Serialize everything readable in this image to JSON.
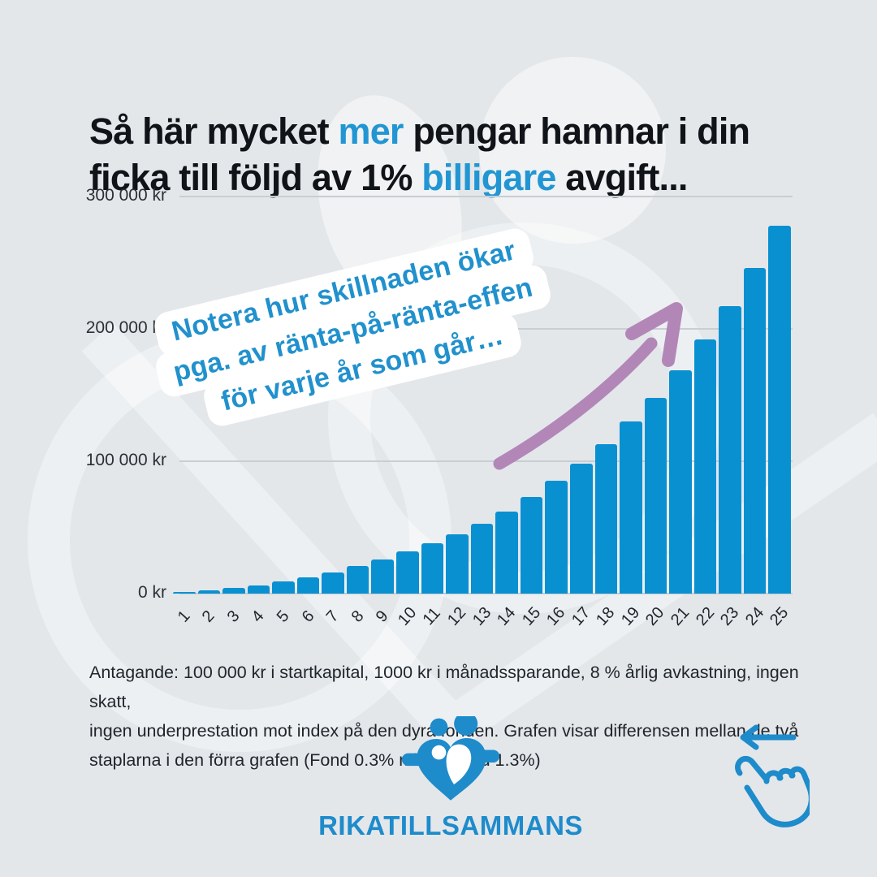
{
  "headline": {
    "l1a": "Så här mycket ",
    "l1b": "mer",
    "l1c": " pengar hamnar i din",
    "l2a": "ficka till följd av 1% ",
    "l2b": "billigare",
    "l2c": " avgift..."
  },
  "chart_data": {
    "type": "bar",
    "title": "Så här mycket mer pengar hamnar i din ficka till följd av 1% billigare avgift...",
    "xlabel": "",
    "ylabel": "",
    "unit": "kr",
    "ylim": [
      0,
      300000
    ],
    "grid": "horizontal",
    "categories": [
      "1",
      "2",
      "3",
      "4",
      "5",
      "6",
      "7",
      "8",
      "9",
      "10",
      "11",
      "12",
      "13",
      "14",
      "15",
      "16",
      "17",
      "18",
      "19",
      "20",
      "21",
      "22",
      "23",
      "24",
      "25"
    ],
    "values": [
      1200,
      2600,
      4500,
      6400,
      9000,
      12000,
      16000,
      21000,
      26000,
      32000,
      38000,
      45000,
      53000,
      62000,
      73000,
      85000,
      98000,
      113000,
      130000,
      148000,
      169000,
      192000,
      217000,
      246000,
      278000
    ],
    "yticks": [
      {
        "value": 300000,
        "label": "300 000 kr"
      },
      {
        "value": 200000,
        "label": "200 000 kr"
      },
      {
        "value": 100000,
        "label": "100 000 kr"
      },
      {
        "value": 0,
        "label": "0 kr"
      }
    ]
  },
  "callout": {
    "line1": "Notera hur skillnaden ökar",
    "line2": "pga. av ränta-på-ränta-effen",
    "line3": "för varje år som går…"
  },
  "footer": {
    "line1": "Antagande: 100 000 kr i startkapital, 1000 kr i månadssparande, 8 % årlig avkastning, ingen skatt,",
    "line2": "ingen underprestation mot index på den dyra fonden. Grafen visar differensen mellan de två",
    "line3": "staplarna i den förra grafen (Fond 0.3% minus Fond 1.3%)"
  },
  "logo": {
    "wordmark": "RIKATILLSAMMANS"
  },
  "icons": {
    "swipe": "swipe-left-gesture",
    "logo_mark": "two-people-heart",
    "arrow": "curved-up-right-arrow"
  },
  "colors": {
    "background": "#e3e7ea",
    "bar": "#0990d1",
    "accent": "#2196d3",
    "callout_text": "#2191cd",
    "arrow": "#b287b8",
    "logo": "#1e8bcb",
    "grid": "#c8ced3",
    "text_dark": "#101317"
  }
}
